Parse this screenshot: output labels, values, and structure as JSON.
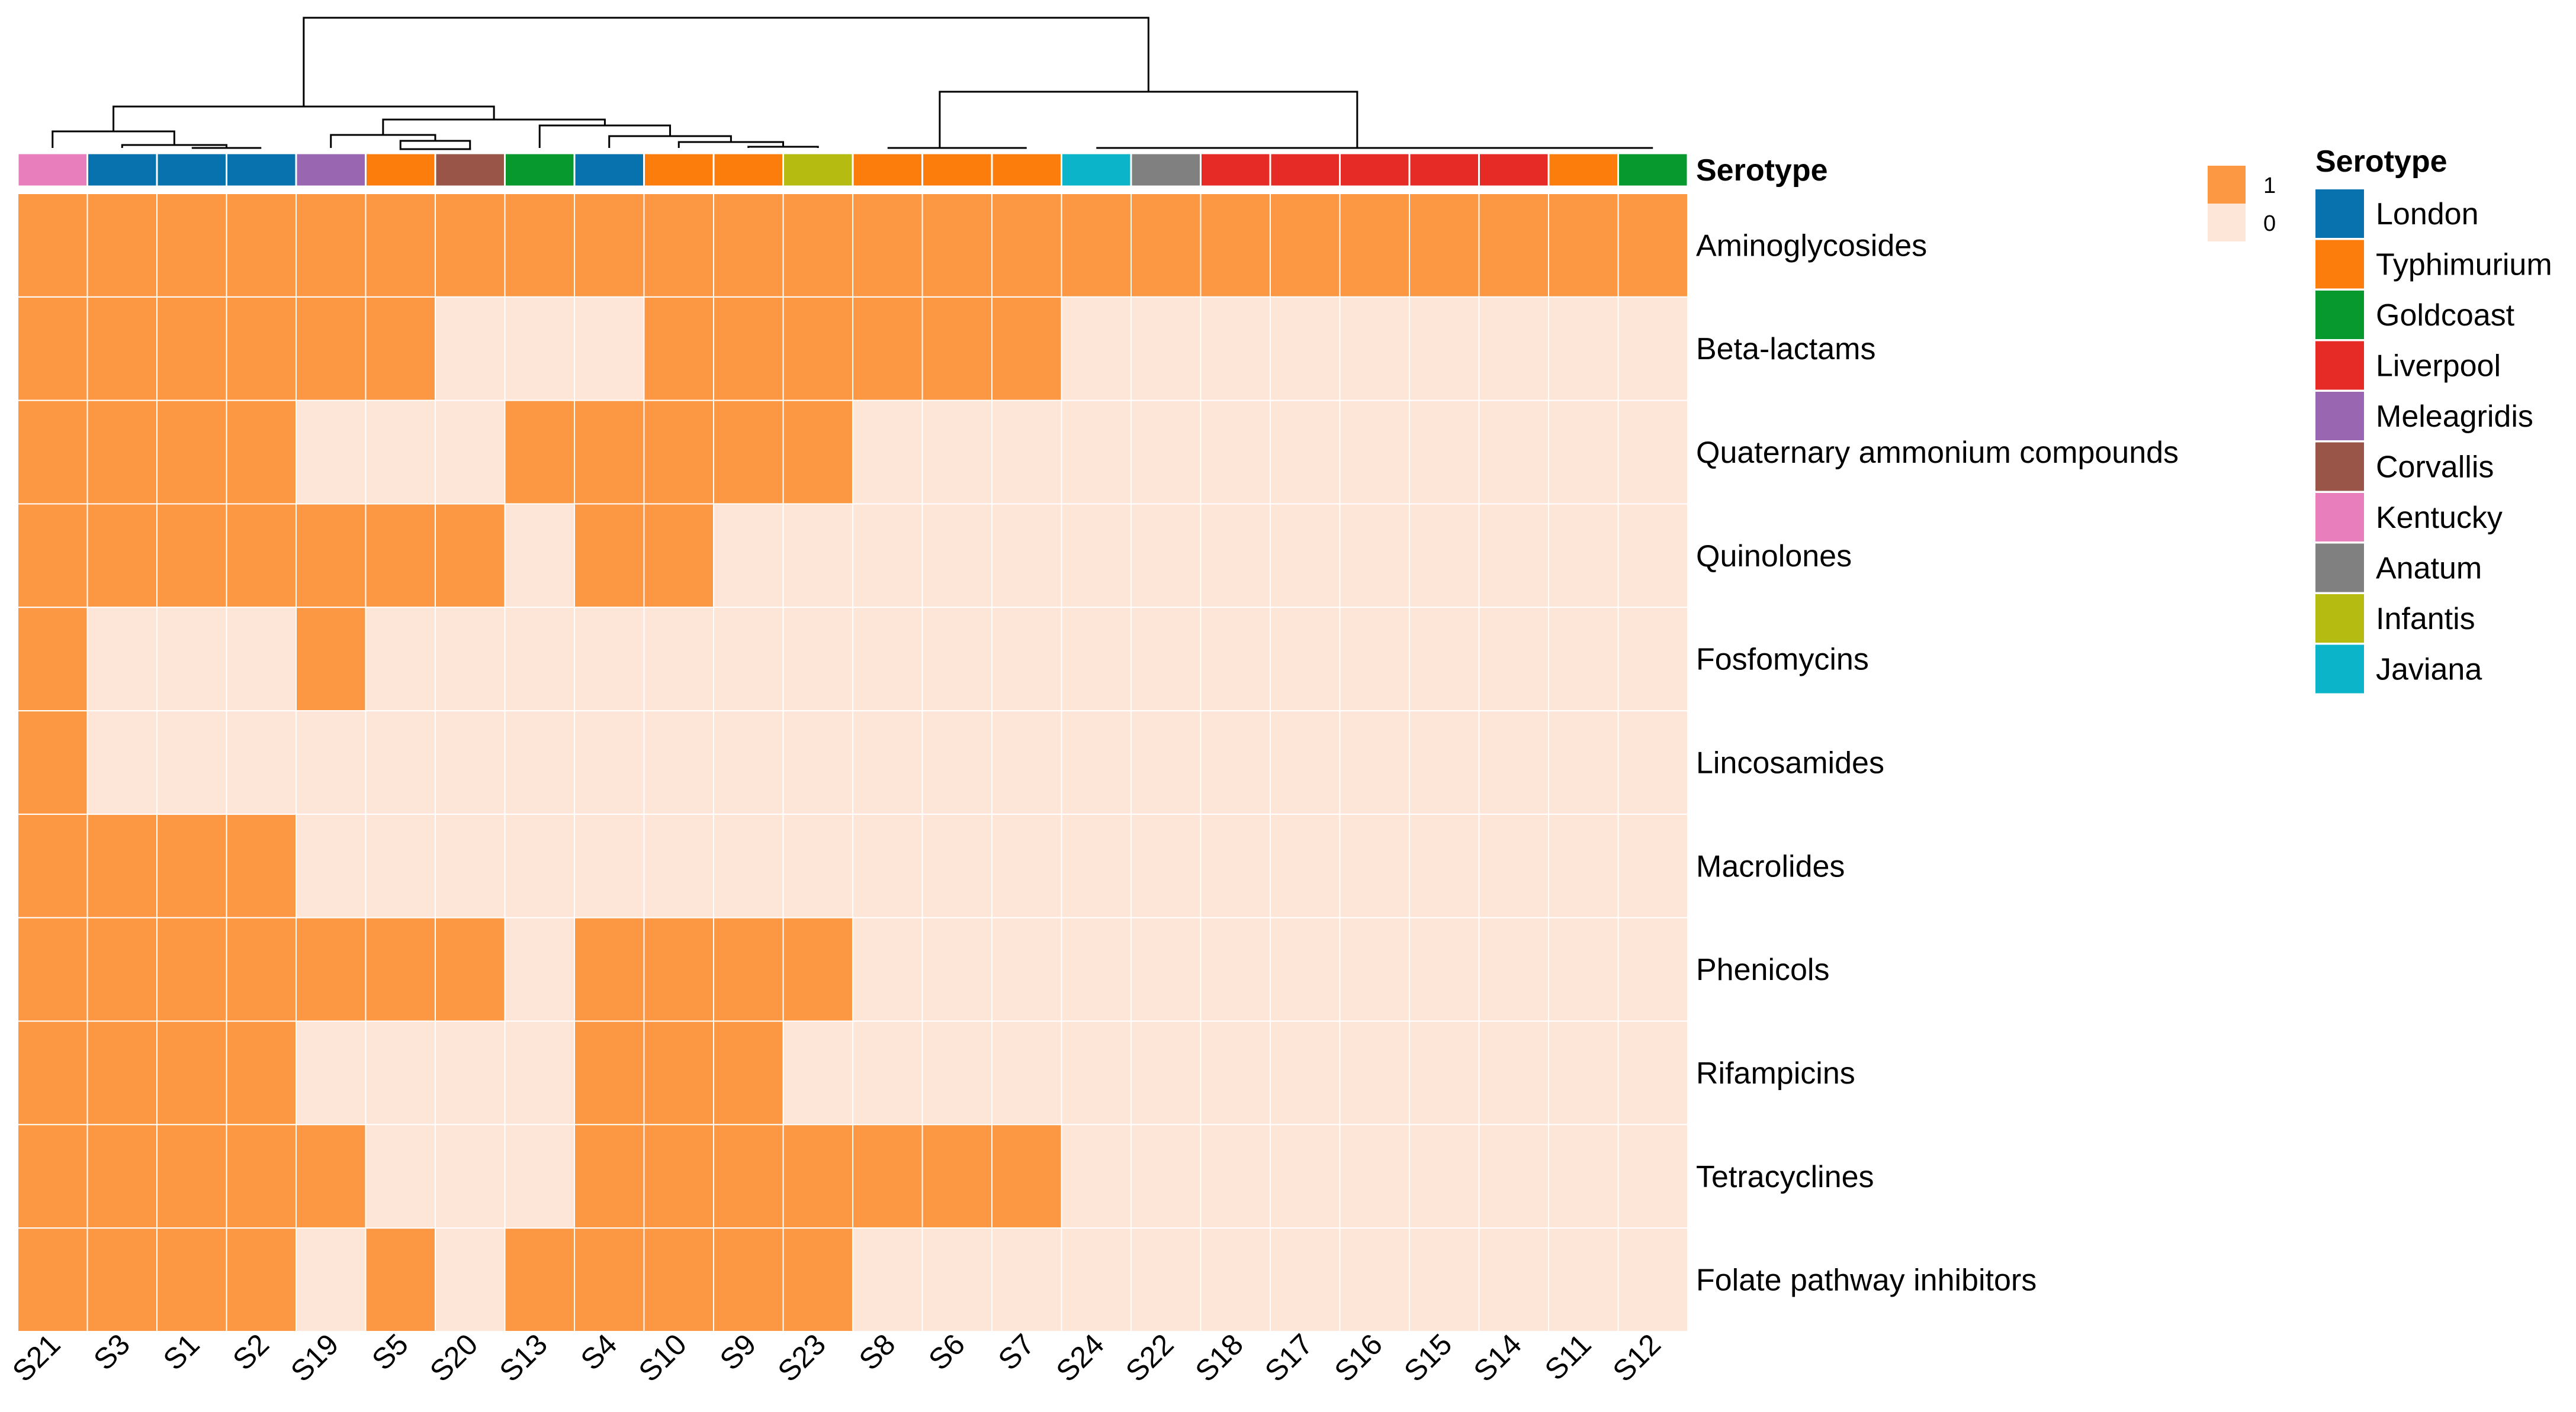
{
  "chart_data": {
    "type": "heatmap",
    "title": "",
    "annotation_label": "Serotype",
    "columns": [
      "S21",
      "S3",
      "S1",
      "S2",
      "S19",
      "S5",
      "S20",
      "S13",
      "S4",
      "S10",
      "S9",
      "S23",
      "S8",
      "S6",
      "S7",
      "S24",
      "S22",
      "S18",
      "S17",
      "S16",
      "S15",
      "S14",
      "S11",
      "S12"
    ],
    "column_serotypes": [
      "Kentucky",
      "London",
      "London",
      "London",
      "Meleagridis",
      "Typhimurium",
      "Corvallis",
      "Goldcoast",
      "London",
      "Typhimurium",
      "Typhimurium",
      "Infantis",
      "Typhimurium",
      "Typhimurium",
      "Typhimurium",
      "Javiana",
      "Anatum",
      "Liverpool",
      "Liverpool",
      "Liverpool",
      "Liverpool",
      "Liverpool",
      "Typhimurium",
      "Goldcoast"
    ],
    "rows": [
      "Aminoglycosides",
      "Beta-lactams",
      "Quaternary ammonium compounds",
      "Quinolones",
      "Fosfomycins",
      "Lincosamides",
      "Macrolides",
      "Phenicols",
      "Rifampicins",
      "Tetracyclines",
      "Folate pathway inhibitors"
    ],
    "values": [
      [
        1,
        1,
        1,
        1,
        1,
        1,
        1,
        1,
        1,
        1,
        1,
        1,
        1,
        1,
        1,
        1,
        1,
        1,
        1,
        1,
        1,
        1,
        1,
        1
      ],
      [
        1,
        1,
        1,
        1,
        1,
        1,
        0,
        0,
        0,
        1,
        1,
        1,
        1,
        1,
        1,
        0,
        0,
        0,
        0,
        0,
        0,
        0,
        0,
        0
      ],
      [
        1,
        1,
        1,
        1,
        0,
        0,
        0,
        1,
        1,
        1,
        1,
        1,
        0,
        0,
        0,
        0,
        0,
        0,
        0,
        0,
        0,
        0,
        0,
        0
      ],
      [
        1,
        1,
        1,
        1,
        1,
        1,
        1,
        0,
        1,
        1,
        0,
        0,
        0,
        0,
        0,
        0,
        0,
        0,
        0,
        0,
        0,
        0,
        0,
        0
      ],
      [
        1,
        0,
        0,
        0,
        1,
        0,
        0,
        0,
        0,
        0,
        0,
        0,
        0,
        0,
        0,
        0,
        0,
        0,
        0,
        0,
        0,
        0,
        0,
        0
      ],
      [
        1,
        0,
        0,
        0,
        0,
        0,
        0,
        0,
        0,
        0,
        0,
        0,
        0,
        0,
        0,
        0,
        0,
        0,
        0,
        0,
        0,
        0,
        0,
        0
      ],
      [
        1,
        1,
        1,
        1,
        0,
        0,
        0,
        0,
        0,
        0,
        0,
        0,
        0,
        0,
        0,
        0,
        0,
        0,
        0,
        0,
        0,
        0,
        0,
        0
      ],
      [
        1,
        1,
        1,
        1,
        1,
        1,
        1,
        0,
        1,
        1,
        1,
        1,
        0,
        0,
        0,
        0,
        0,
        0,
        0,
        0,
        0,
        0,
        0,
        0
      ],
      [
        1,
        1,
        1,
        1,
        0,
        0,
        0,
        0,
        1,
        1,
        1,
        0,
        0,
        0,
        0,
        0,
        0,
        0,
        0,
        0,
        0,
        0,
        0,
        0
      ],
      [
        1,
        1,
        1,
        1,
        1,
        0,
        0,
        0,
        1,
        1,
        1,
        1,
        1,
        1,
        1,
        0,
        0,
        0,
        0,
        0,
        0,
        0,
        0,
        0
      ],
      [
        1,
        1,
        1,
        1,
        0,
        1,
        0,
        1,
        1,
        1,
        1,
        1,
        0,
        0,
        0,
        0,
        0,
        0,
        0,
        0,
        0,
        0,
        0,
        0
      ]
    ],
    "value_legend": [
      {
        "label": "1",
        "color": "#FC9744"
      },
      {
        "label": "0",
        "color": "#FDE5D8"
      }
    ],
    "serotype_legend_title": "Serotype",
    "serotype_legend": [
      {
        "name": "London",
        "color": "#0872AE"
      },
      {
        "name": "Typhimurium",
        "color": "#FC7D0B"
      },
      {
        "name": "Goldcoast",
        "color": "#08992E"
      },
      {
        "name": "Liverpool",
        "color": "#E62B26"
      },
      {
        "name": "Meleagridis",
        "color": "#9966B2"
      },
      {
        "name": "Corvallis",
        "color": "#995548"
      },
      {
        "name": "Kentucky",
        "color": "#E87EBB"
      },
      {
        "name": "Anatum",
        "color": "#808080"
      },
      {
        "name": "Infantis",
        "color": "#B5BB10"
      },
      {
        "name": "Javiana",
        "color": "#0CB4CA"
      }
    ]
  }
}
